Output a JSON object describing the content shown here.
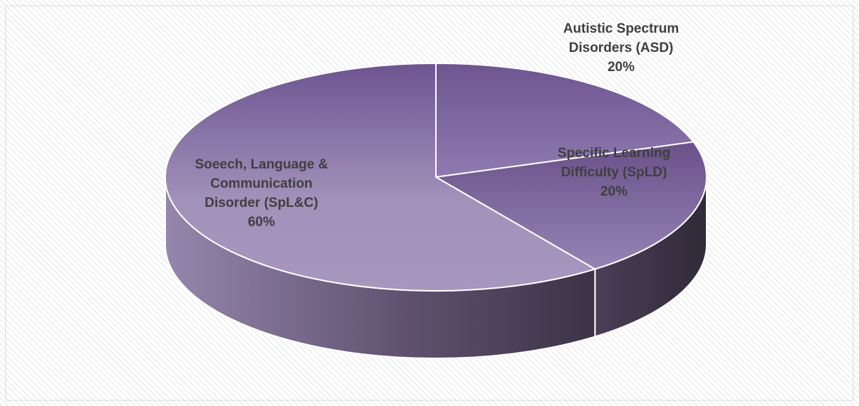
{
  "chart_data": {
    "type": "pie",
    "style": "3d",
    "slices": [
      {
        "label_lines": [
          "Autistic Spectrum",
          "Disorders (ASD)"
        ],
        "percent_label": "20%",
        "value": 20,
        "color": "#8a73a8"
      },
      {
        "label_lines": [
          "Specific Learning",
          "Difficulty (SpLD)"
        ],
        "percent_label": "20%",
        "value": 20,
        "color": "#7e649d"
      },
      {
        "label_lines": [
          "Soeech, Language &",
          "Communication",
          "Disorder (SpL&C)"
        ],
        "percent_label": "60%",
        "value": 60,
        "color": "#9a86b6"
      }
    ],
    "background": "diagonal-hatch",
    "legend": "none"
  }
}
